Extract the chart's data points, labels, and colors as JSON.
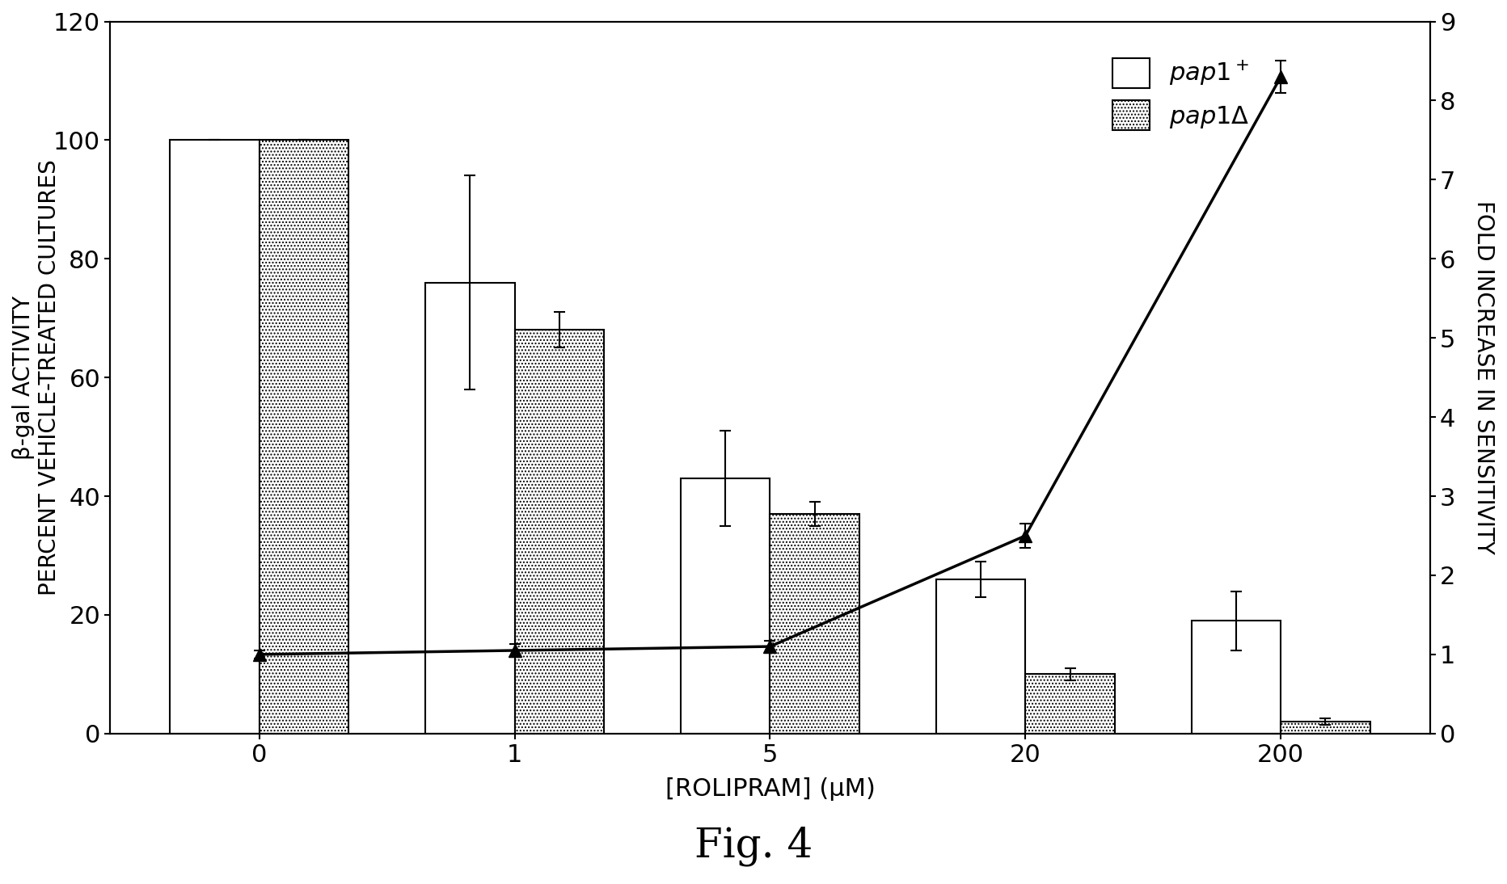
{
  "x_positions": [
    0,
    1,
    5,
    20,
    200
  ],
  "x_labels": [
    "0",
    "1",
    "5",
    "20",
    "200"
  ],
  "bar_width": 0.35,
  "pap1_plus_values": [
    100,
    76,
    43,
    26,
    19
  ],
  "pap1_plus_errors": [
    0,
    18,
    8,
    3,
    5
  ],
  "pap1_delta_values": [
    100,
    68,
    37,
    10,
    2
  ],
  "pap1_delta_errors": [
    0,
    3,
    2,
    1,
    0.5
  ],
  "fold_values": [
    1.0,
    1.05,
    1.1,
    2.5,
    8.3
  ],
  "fold_errors": [
    0.05,
    0.08,
    0.07,
    0.15,
    0.2
  ],
  "ylabel_left": "β-gal ACTIVITY\nPERCENT VEHICLE-TREATED CULTURES",
  "ylabel_right": "FOLD INCREASE IN SENSITIVITY",
  "xlabel": "[ROLIPRAM] (μM)",
  "ylim_left": [
    0,
    120
  ],
  "ylim_right": [
    0,
    9
  ],
  "yticks_left": [
    0,
    20,
    40,
    60,
    80,
    100,
    120
  ],
  "yticks_right": [
    0,
    1,
    2,
    3,
    4,
    5,
    6,
    7,
    8,
    9
  ],
  "figure_caption": "Fig. 4",
  "bg_color": "#ffffff",
  "bar_color_pap1plus": "#ffffff",
  "line_color": "#000000",
  "bar_edgecolor": "#000000"
}
